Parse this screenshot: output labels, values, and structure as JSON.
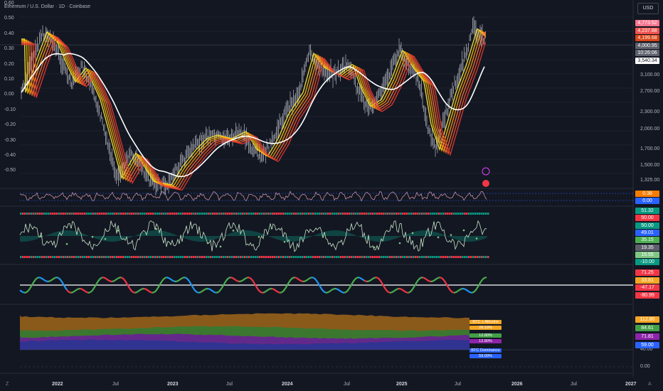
{
  "header": {
    "title": "Ethereum / U.S. Dollar · 1D · Coinbase"
  },
  "currency_button": "USD",
  "left_axis": [
    "0.60",
    "0.50",
    "0.40",
    "0.30",
    "0.20",
    "0.10",
    "0.00",
    "-0.10",
    "-0.20",
    "-0.30",
    "-0.40",
    "-0.50"
  ],
  "right_axis_price": [
    "3,100.00",
    "2,700.00",
    "2,300.00",
    "2,000.00",
    "1,700.00",
    "1,500.00",
    "1,325.00"
  ],
  "price_tags": [
    {
      "text": "4,773.52",
      "color": "#f7768e"
    },
    {
      "text": "4,237.88",
      "color": "#ef5350"
    },
    {
      "text": "4,199.68",
      "color": "#d84315"
    },
    {
      "text": "4,000.95",
      "color": "#5d606b"
    },
    {
      "text": "10:26:06",
      "color": "#5d606b"
    },
    {
      "text": "3,540.34",
      "color": "#ffffff"
    }
  ],
  "pane2_tags": [
    {
      "text": "0.38",
      "color": "#f57c00"
    },
    {
      "text": "0.00",
      "color": "#2962ff"
    }
  ],
  "pane3_tags": [
    {
      "text": "51.32",
      "color": "#089981"
    },
    {
      "text": "50.00",
      "color": "#f23645"
    },
    {
      "text": "50.00",
      "color": "#089981"
    },
    {
      "text": "49.01",
      "color": "#2962ff"
    },
    {
      "text": "35.15",
      "color": "#4caf50"
    },
    {
      "text": "19.35",
      "color": "#5d606b"
    },
    {
      "text": "15.55",
      "color": "#81c784"
    },
    {
      "text": "-10.00",
      "color": "#089981"
    }
  ],
  "pane4_tags": [
    {
      "text": "71.25",
      "color": "#f23645"
    },
    {
      "text": "33.81",
      "color": "#f5a623"
    },
    {
      "text": "-47.17",
      "color": "#f23645"
    },
    {
      "text": "-80.99",
      "color": "#f23645"
    }
  ],
  "pane5_tags": [
    {
      "text": "112.80",
      "color": "#f5a623"
    },
    {
      "text": "84.61",
      "color": "#43a047"
    },
    {
      "text": "71.81",
      "color": "#8e24aa"
    },
    {
      "text": "59.00",
      "color": "#2962ff"
    }
  ],
  "pane5_axis": [
    "40.00",
    "0.00"
  ],
  "pane5_legend": [
    {
      "text": "BTC + Altcoins",
      "color": "#f5a623"
    },
    {
      "text": "28.19%",
      "color": "#f5a623"
    },
    {
      "text": "12.80%",
      "color": "#43a047"
    },
    {
      "text": "12.80%",
      "color": "#8e24aa"
    },
    {
      "text": "BTC Dominance",
      "color": "#2962ff"
    },
    {
      "text": "59.00%",
      "color": "#2962ff"
    }
  ],
  "x_axis": [
    "2022",
    "Jul",
    "2023",
    "Jul",
    "2024",
    "Jul",
    "2025",
    "Jul",
    "2026",
    "Jul",
    "2027"
  ],
  "corner_labels": {
    "left": "Z",
    "right": "A"
  },
  "colors": {
    "background": "#131722",
    "grid": "#1e222d",
    "separator": "#2a2e39",
    "ma_white": "#ffffff"
  }
}
